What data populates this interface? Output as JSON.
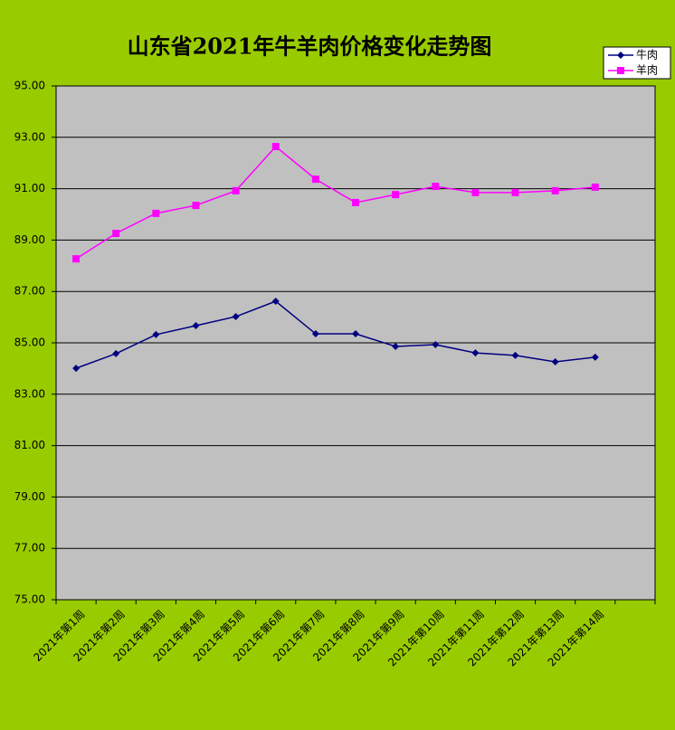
{
  "chart_data": {
    "type": "line",
    "title": "山东省2021年牛羊肉价格变化走势图",
    "categories": [
      "2021年第1周",
      "2021年第2周",
      "2021年第3周",
      "2021年第4周",
      "2021年第5周",
      "2021年第6周",
      "2021年第7周",
      "2021年第8周",
      "2021年第9周",
      "2021年第10周",
      "2021年第11周",
      "2021年第12周",
      "2021年第13周",
      "2021年第14周",
      null
    ],
    "series": [
      {
        "name": "牛肉",
        "color": "#000080",
        "marker": "diamond",
        "values": [
          84.01,
          84.58,
          85.32,
          85.67,
          86.02,
          86.62,
          85.35,
          85.35,
          84.86,
          84.93,
          84.61,
          84.51,
          84.26,
          84.44,
          null
        ]
      },
      {
        "name": "羊肉",
        "color": "#ff00ff",
        "marker": "square",
        "values": [
          88.27,
          89.26,
          90.04,
          90.35,
          90.92,
          92.64,
          91.37,
          90.46,
          90.77,
          91.09,
          90.85,
          90.85,
          90.92,
          91.06,
          null
        ]
      }
    ],
    "ylim": [
      75,
      95
    ],
    "yticks": [
      {
        "value": 75,
        "label": "75.00"
      },
      {
        "value": 77,
        "label": "77.00"
      },
      {
        "value": 79,
        "label": "79.00"
      },
      {
        "value": 81,
        "label": "81.00"
      },
      {
        "value": 83,
        "label": "83.00"
      },
      {
        "value": 85,
        "label": "85.00"
      },
      {
        "value": 87,
        "label": "87.00"
      },
      {
        "value": 89,
        "label": "89.00"
      },
      {
        "value": 91,
        "label": "91.00"
      },
      {
        "value": 93,
        "label": "93.00"
      },
      {
        "value": 95,
        "label": "95.00"
      }
    ],
    "grid": true,
    "legend": "top-right",
    "background": "#99cc00",
    "plot_background": "#c0c0c0"
  }
}
